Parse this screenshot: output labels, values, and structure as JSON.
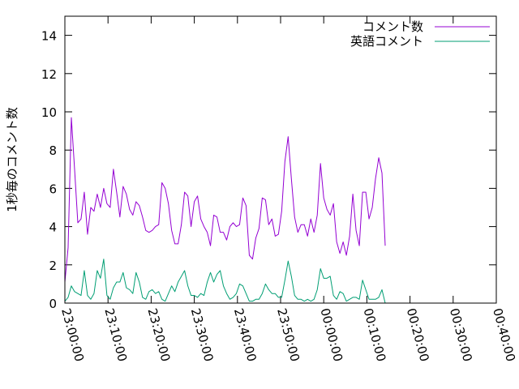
{
  "chart_data": {
    "type": "line",
    "title": "",
    "xlabel": "",
    "ylabel": "1秒毎のコメント数",
    "ylim": [
      0,
      15
    ],
    "yticks": [
      0,
      2,
      4,
      6,
      8,
      10,
      12,
      14
    ],
    "xlim": [
      "23:00:00",
      "00:40:00"
    ],
    "xticks": [
      "23:00:00",
      "23:10:00",
      "23:20:00",
      "23:30:00",
      "23:40:00",
      "23:50:00",
      "00:00:00",
      "00:10:00",
      "00:20:00",
      "00:30:00",
      "00:40:00"
    ],
    "legend_position": "top-right",
    "grid": false,
    "series": [
      {
        "name": "コメント数",
        "color": "#9400d3",
        "points": [
          [
            "23:00:00",
            1.1
          ],
          [
            "23:00:45",
            2.9
          ],
          [
            "23:01:30",
            9.7
          ],
          [
            "23:02:15",
            7.0
          ],
          [
            "23:03:00",
            4.2
          ],
          [
            "23:03:45",
            4.4
          ],
          [
            "23:04:30",
            5.8
          ],
          [
            "23:05:15",
            3.6
          ],
          [
            "23:06:00",
            5.0
          ],
          [
            "23:06:45",
            4.8
          ],
          [
            "23:07:30",
            5.7
          ],
          [
            "23:08:15",
            5.0
          ],
          [
            "23:09:00",
            6.0
          ],
          [
            "23:09:45",
            5.2
          ],
          [
            "23:10:30",
            5.0
          ],
          [
            "23:11:15",
            7.0
          ],
          [
            "23:12:00",
            5.8
          ],
          [
            "23:12:45",
            4.5
          ],
          [
            "23:13:30",
            6.1
          ],
          [
            "23:14:15",
            5.7
          ],
          [
            "23:15:00",
            4.9
          ],
          [
            "23:15:45",
            4.6
          ],
          [
            "23:16:30",
            5.3
          ],
          [
            "23:17:15",
            5.1
          ],
          [
            "23:18:00",
            4.5
          ],
          [
            "23:18:45",
            3.8
          ],
          [
            "23:19:30",
            3.7
          ],
          [
            "23:20:15",
            3.8
          ],
          [
            "23:21:00",
            4.0
          ],
          [
            "23:21:45",
            4.1
          ],
          [
            "23:22:30",
            6.3
          ],
          [
            "23:23:15",
            6.0
          ],
          [
            "23:24:00",
            5.2
          ],
          [
            "23:24:45",
            3.8
          ],
          [
            "23:25:30",
            3.1
          ],
          [
            "23:26:15",
            3.1
          ],
          [
            "23:27:00",
            4.1
          ],
          [
            "23:27:45",
            5.8
          ],
          [
            "23:28:30",
            5.6
          ],
          [
            "23:29:15",
            4.0
          ],
          [
            "23:30:00",
            5.3
          ],
          [
            "23:30:45",
            5.6
          ],
          [
            "23:31:30",
            4.4
          ],
          [
            "23:32:15",
            4.0
          ],
          [
            "23:33:00",
            3.7
          ],
          [
            "23:33:45",
            3.0
          ],
          [
            "23:34:30",
            4.6
          ],
          [
            "23:35:15",
            4.5
          ],
          [
            "23:36:00",
            3.7
          ],
          [
            "23:36:45",
            3.7
          ],
          [
            "23:37:30",
            3.3
          ],
          [
            "23:38:15",
            4.0
          ],
          [
            "23:39:00",
            4.2
          ],
          [
            "23:39:45",
            4.0
          ],
          [
            "23:40:30",
            4.1
          ],
          [
            "23:41:15",
            5.5
          ],
          [
            "23:42:00",
            5.1
          ],
          [
            "23:42:45",
            2.5
          ],
          [
            "23:43:30",
            2.3
          ],
          [
            "23:44:15",
            3.4
          ],
          [
            "23:45:00",
            3.9
          ],
          [
            "23:45:45",
            5.5
          ],
          [
            "23:46:30",
            5.4
          ],
          [
            "23:47:15",
            4.1
          ],
          [
            "23:48:00",
            4.4
          ],
          [
            "23:48:45",
            3.5
          ],
          [
            "23:49:30",
            3.6
          ],
          [
            "23:50:15",
            4.8
          ],
          [
            "23:51:00",
            7.4
          ],
          [
            "23:51:45",
            8.7
          ],
          [
            "23:52:30",
            6.5
          ],
          [
            "23:53:15",
            4.5
          ],
          [
            "23:54:00",
            3.7
          ],
          [
            "23:54:45",
            4.1
          ],
          [
            "23:55:30",
            4.1
          ],
          [
            "23:56:15",
            3.5
          ],
          [
            "23:57:00",
            4.4
          ],
          [
            "23:57:45",
            3.7
          ],
          [
            "23:58:30",
            4.6
          ],
          [
            "23:59:15",
            7.3
          ],
          [
            "00:00:00",
            5.5
          ],
          [
            "00:00:45",
            4.9
          ],
          [
            "00:01:30",
            4.6
          ],
          [
            "00:02:15",
            5.2
          ],
          [
            "00:03:00",
            3.2
          ],
          [
            "00:03:45",
            2.6
          ],
          [
            "00:04:30",
            3.2
          ],
          [
            "00:05:15",
            2.5
          ],
          [
            "00:06:00",
            3.5
          ],
          [
            "00:06:45",
            5.7
          ],
          [
            "00:07:30",
            3.8
          ],
          [
            "00:08:15",
            3.0
          ],
          [
            "00:09:00",
            5.8
          ],
          [
            "00:09:45",
            5.8
          ],
          [
            "00:10:30",
            4.4
          ],
          [
            "00:11:15",
            5.0
          ],
          [
            "00:12:00",
            6.5
          ],
          [
            "00:12:45",
            7.6
          ],
          [
            "00:13:30",
            6.8
          ],
          [
            "00:14:15",
            3.0
          ]
        ]
      },
      {
        "name": "英語コメント",
        "color": "#009e73",
        "points": [
          [
            "23:00:00",
            0.1
          ],
          [
            "23:00:45",
            0.3
          ],
          [
            "23:01:30",
            0.9
          ],
          [
            "23:02:15",
            0.6
          ],
          [
            "23:03:00",
            0.5
          ],
          [
            "23:03:45",
            0.4
          ],
          [
            "23:04:30",
            1.7
          ],
          [
            "23:05:15",
            0.4
          ],
          [
            "23:06:00",
            0.2
          ],
          [
            "23:06:45",
            0.5
          ],
          [
            "23:07:30",
            1.7
          ],
          [
            "23:08:15",
            1.3
          ],
          [
            "23:09:00",
            2.3
          ],
          [
            "23:09:45",
            0.4
          ],
          [
            "23:10:30",
            0.2
          ],
          [
            "23:11:15",
            0.8
          ],
          [
            "23:12:00",
            1.1
          ],
          [
            "23:12:45",
            1.1
          ],
          [
            "23:13:30",
            1.6
          ],
          [
            "23:14:15",
            0.8
          ],
          [
            "23:15:00",
            0.7
          ],
          [
            "23:15:45",
            0.5
          ],
          [
            "23:16:30",
            1.6
          ],
          [
            "23:17:15",
            1.1
          ],
          [
            "23:18:00",
            0.3
          ],
          [
            "23:18:45",
            0.2
          ],
          [
            "23:19:30",
            0.6
          ],
          [
            "23:20:15",
            0.7
          ],
          [
            "23:21:00",
            0.5
          ],
          [
            "23:21:45",
            0.6
          ],
          [
            "23:22:30",
            0.2
          ],
          [
            "23:23:15",
            0.1
          ],
          [
            "23:24:00",
            0.5
          ],
          [
            "23:24:45",
            0.9
          ],
          [
            "23:25:30",
            0.6
          ],
          [
            "23:26:15",
            1.1
          ],
          [
            "23:27:00",
            1.4
          ],
          [
            "23:27:45",
            1.7
          ],
          [
            "23:28:30",
            0.9
          ],
          [
            "23:29:15",
            0.4
          ],
          [
            "23:30:00",
            0.4
          ],
          [
            "23:30:45",
            0.3
          ],
          [
            "23:31:30",
            0.5
          ],
          [
            "23:32:15",
            0.4
          ],
          [
            "23:33:00",
            1.1
          ],
          [
            "23:33:45",
            1.6
          ],
          [
            "23:34:30",
            1.1
          ],
          [
            "23:35:15",
            1.5
          ],
          [
            "23:36:00",
            1.7
          ],
          [
            "23:36:45",
            0.9
          ],
          [
            "23:37:30",
            0.5
          ],
          [
            "23:38:15",
            0.2
          ],
          [
            "23:39:00",
            0.3
          ],
          [
            "23:39:45",
            0.5
          ],
          [
            "23:40:30",
            1.0
          ],
          [
            "23:41:15",
            0.9
          ],
          [
            "23:42:00",
            0.5
          ],
          [
            "23:42:45",
            0.1
          ],
          [
            "23:43:30",
            0.1
          ],
          [
            "23:44:15",
            0.2
          ],
          [
            "23:45:00",
            0.2
          ],
          [
            "23:45:45",
            0.5
          ],
          [
            "23:46:30",
            1.0
          ],
          [
            "23:47:15",
            0.7
          ],
          [
            "23:48:00",
            0.5
          ],
          [
            "23:48:45",
            0.5
          ],
          [
            "23:49:30",
            0.3
          ],
          [
            "23:50:15",
            0.3
          ],
          [
            "23:51:00",
            1.2
          ],
          [
            "23:51:45",
            2.2
          ],
          [
            "23:52:30",
            1.4
          ],
          [
            "23:53:15",
            0.4
          ],
          [
            "23:54:00",
            0.2
          ],
          [
            "23:54:45",
            0.2
          ],
          [
            "23:55:30",
            0.1
          ],
          [
            "23:56:15",
            0.2
          ],
          [
            "23:57:00",
            0.1
          ],
          [
            "23:57:45",
            0.2
          ],
          [
            "23:58:30",
            0.7
          ],
          [
            "23:59:15",
            1.8
          ],
          [
            "00:00:00",
            1.3
          ],
          [
            "00:00:45",
            1.3
          ],
          [
            "00:01:30",
            1.4
          ],
          [
            "00:02:15",
            0.4
          ],
          [
            "00:03:00",
            0.2
          ],
          [
            "00:03:45",
            0.6
          ],
          [
            "00:04:30",
            0.5
          ],
          [
            "00:05:15",
            0.1
          ],
          [
            "00:06:00",
            0.2
          ],
          [
            "00:06:45",
            0.3
          ],
          [
            "00:07:30",
            0.3
          ],
          [
            "00:08:15",
            0.2
          ],
          [
            "00:09:00",
            1.2
          ],
          [
            "00:09:45",
            0.7
          ],
          [
            "00:10:30",
            0.2
          ],
          [
            "00:11:15",
            0.2
          ],
          [
            "00:12:00",
            0.2
          ],
          [
            "00:12:45",
            0.3
          ],
          [
            "00:13:30",
            0.7
          ],
          [
            "00:14:15",
            0.0
          ]
        ]
      }
    ]
  }
}
